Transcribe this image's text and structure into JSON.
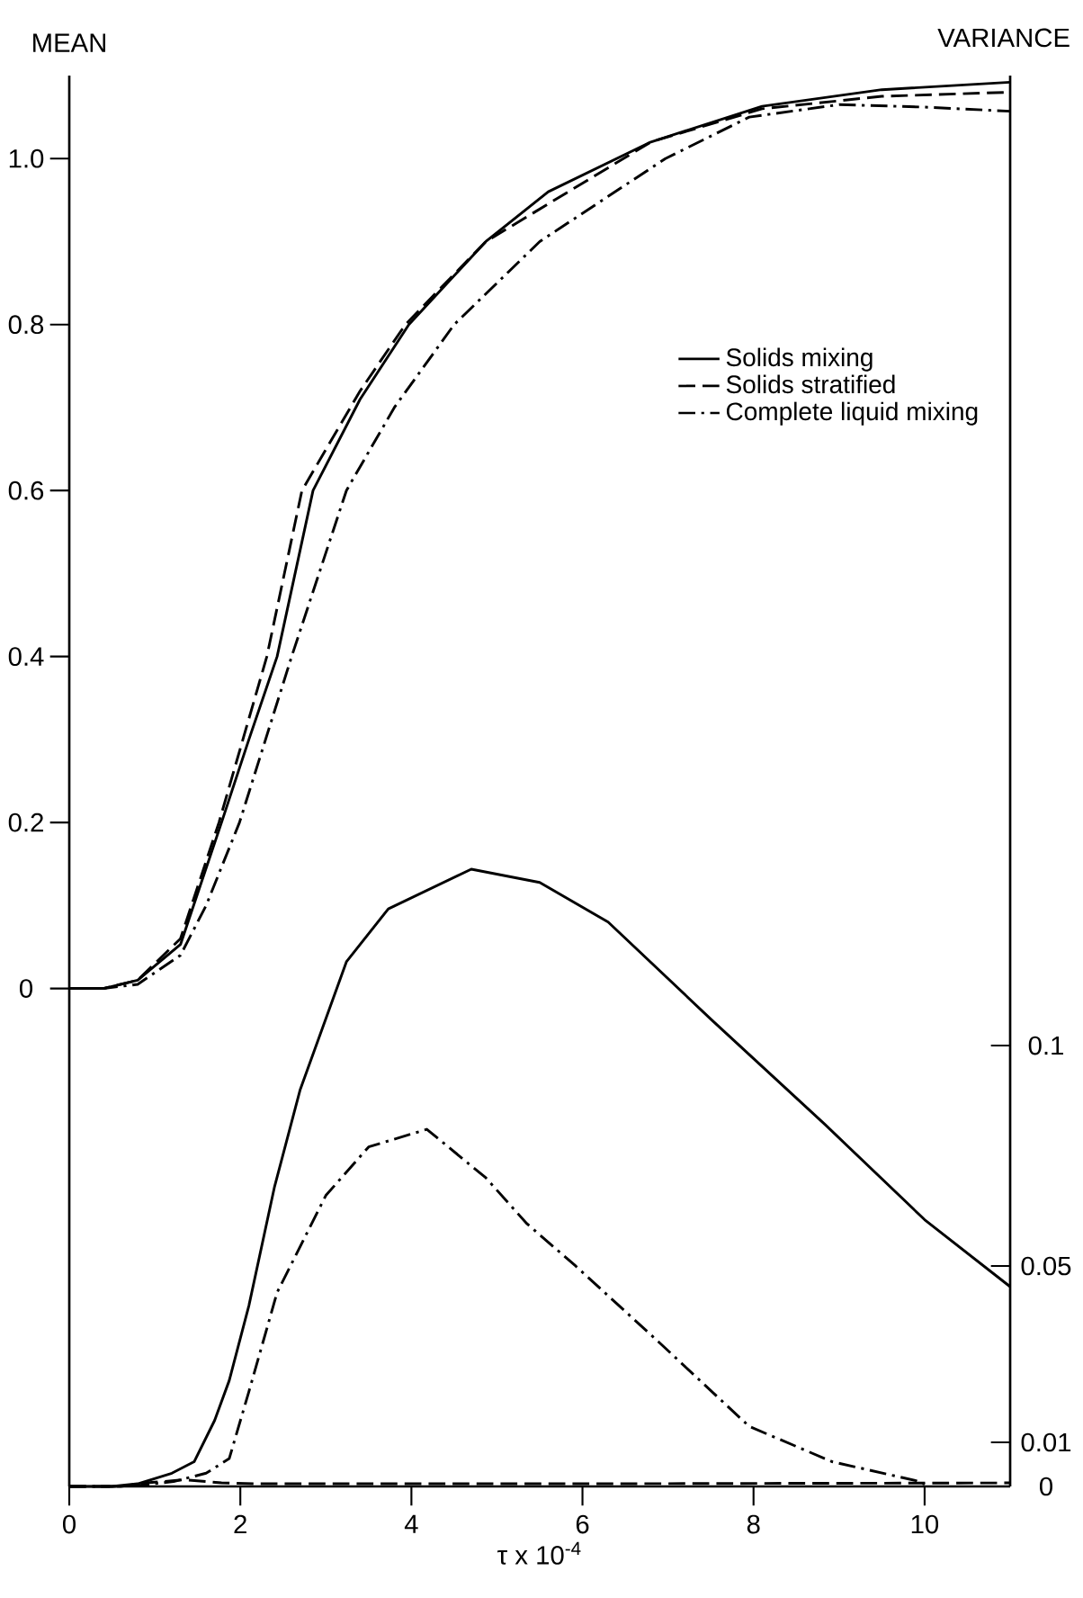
{
  "chart_data": {
    "type": "line",
    "xlabel": "τ x 10$^{-4}$",
    "ylabel": "MEAN",
    "y2label": "VARIANCE",
    "xlim": [
      0,
      11
    ],
    "xticks": [
      0,
      2,
      4,
      6,
      8,
      10
    ],
    "ylim": [
      -0.6,
      1.1
    ],
    "yticks": [
      0,
      0.2,
      0.4,
      0.6,
      0.8,
      {
        "value": 1,
        "label": "1.0"
      }
    ],
    "y2lim": [
      0,
      0.32
    ],
    "y2ticks": [
      0,
      0.01,
      0.05,
      0.1
    ],
    "grid": false,
    "legend": "right",
    "series": [
      {
        "name": "Solids mixing",
        "color": "#000000",
        "line_style": "solid",
        "x": [
          0,
          0.4,
          0.8,
          1.3,
          1.78,
          2.1,
          2.43,
          2.85,
          3.4,
          3.97,
          4.87,
          5.6,
          6.8,
          8.1,
          9.5,
          11
        ],
        "values": [
          0,
          0,
          0.01,
          0.053,
          0.2,
          0.3,
          0.4,
          0.6,
          0.71,
          0.8,
          0.9,
          0.96,
          1.02,
          1.063,
          1.083,
          1.092
        ]
      },
      {
        "name": "Solids stratified",
        "color": "#000000",
        "line_style": "dashed",
        "x": [
          0,
          0.4,
          0.8,
          1.3,
          1.75,
          2.31,
          2.72,
          3.4,
          3.93,
          4.87,
          6.8,
          8.1,
          9.5,
          11
        ],
        "values": [
          0,
          0,
          0.01,
          0.06,
          0.2,
          0.4,
          0.6,
          0.72,
          0.8,
          0.9,
          1.02,
          1.06,
          1.075,
          1.08
        ]
      },
      {
        "name": "Complete liquid mixing",
        "color": "#000000",
        "line_style": "dashdot",
        "x": [
          0,
          0.4,
          0.8,
          1.3,
          1.6,
          1.99,
          2.6,
          3.24,
          3.8,
          4.5,
          5.5,
          6.97,
          7.95,
          9.0,
          10,
          11
        ],
        "values": [
          0,
          0,
          0.005,
          0.04,
          0.1,
          0.2,
          0.4,
          0.6,
          0.7,
          0.8,
          0.9,
          1.0,
          1.05,
          1.065,
          1.062,
          1.057
        ]
      },
      {
        "axis": "y2",
        "color": "#000000",
        "line_style": "solid",
        "x": [
          0,
          0.5,
          0.8,
          1.2,
          1.46,
          1.7,
          1.87,
          2.1,
          2.4,
          2.7,
          3.24,
          3.73,
          4.7,
          5.5,
          6.3,
          7.5,
          8.84,
          10,
          11
        ],
        "values": [
          0,
          0,
          0.0006,
          0.003,
          0.0056,
          0.015,
          0.024,
          0.041,
          0.068,
          0.09,
          0.119,
          0.131,
          0.14,
          0.137,
          0.128,
          0.106,
          0.082,
          0.0605,
          0.0453
        ]
      },
      {
        "axis": "y2",
        "color": "#000000",
        "line_style": "dashed",
        "x": [
          0,
          0.6,
          0.9,
          1.34,
          1.6,
          1.78,
          2.2,
          6,
          11
        ],
        "values": [
          0,
          0,
          0.0008,
          0.0015,
          0.0011,
          0.0008,
          0.0006,
          0.0006,
          0.0008
        ]
      },
      {
        "axis": "y2",
        "color": "#000000",
        "line_style": "dashdot",
        "x": [
          0,
          0.5,
          0.81,
          1.22,
          1.6,
          1.87,
          2.1,
          2.43,
          3.0,
          3.5,
          4.18,
          4.87,
          5.35,
          5.92,
          6.9,
          7.95,
          8.92,
          9.9,
          10.0
        ],
        "values": [
          0,
          0,
          0.0002,
          0.0011,
          0.003,
          0.0063,
          0.0215,
          0.044,
          0.066,
          0.077,
          0.081,
          0.07,
          0.0596,
          0.05,
          0.0326,
          0.0136,
          0.0056,
          0.0013,
          0.0005
        ]
      }
    ]
  }
}
